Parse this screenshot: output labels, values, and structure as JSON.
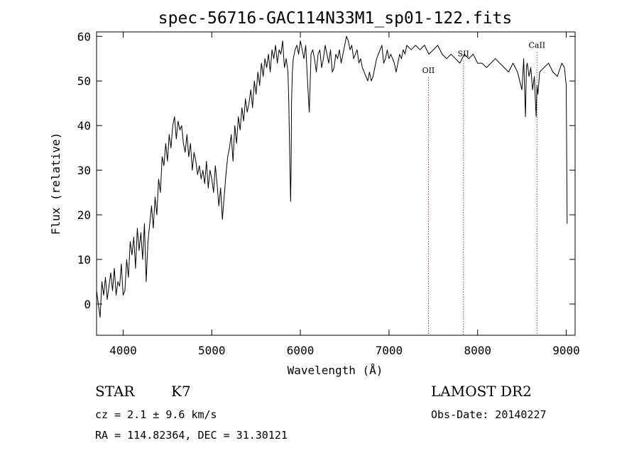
{
  "chart_data": {
    "type": "line",
    "title": "spec-56716-GAC114N33M1_sp01-122.fits",
    "xlabel": "Wavelength (Å)",
    "ylabel": "Flux (relative)",
    "xlim": [
      3700,
      9100
    ],
    "ylim": [
      -7,
      61
    ],
    "xticks": [
      4000,
      5000,
      6000,
      7000,
      8000,
      9000
    ],
    "yticks": [
      0,
      10,
      20,
      30,
      40,
      50,
      60
    ],
    "grid": false,
    "series": [
      {
        "x": [
          3700,
          3720,
          3740,
          3760,
          3780,
          3800,
          3820,
          3840,
          3860,
          3880,
          3900,
          3920,
          3940,
          3960,
          3980,
          4000,
          4020,
          4040,
          4060,
          4080,
          4100,
          4120,
          4140,
          4160,
          4180,
          4200,
          4220,
          4240,
          4260,
          4280,
          4300,
          4320,
          4340,
          4360,
          4380,
          4400,
          4420,
          4440,
          4460,
          4480,
          4500,
          4520,
          4540,
          4560,
          4580,
          4600,
          4620,
          4640,
          4660,
          4680,
          4700,
          4720,
          4740,
          4760,
          4780,
          4800,
          4820,
          4840,
          4860,
          4880,
          4900,
          4920,
          4940,
          4960,
          4980,
          5000,
          5020,
          5040,
          5060,
          5080,
          5100,
          5120,
          5140,
          5160,
          5180,
          5200,
          5220,
          5240,
          5260,
          5280,
          5300,
          5320,
          5340,
          5360,
          5380,
          5400,
          5420,
          5440,
          5460,
          5480,
          5500,
          5520,
          5540,
          5560,
          5580,
          5600,
          5620,
          5640,
          5660,
          5680,
          5700,
          5720,
          5740,
          5760,
          5780,
          5800,
          5820,
          5840,
          5860,
          5870,
          5880,
          5890,
          5895,
          5900,
          5910,
          5920,
          5940,
          5960,
          5980,
          6000,
          6020,
          6040,
          6060,
          6080,
          6100,
          6120,
          6140,
          6160,
          6180,
          6200,
          6220,
          6240,
          6260,
          6280,
          6300,
          6320,
          6340,
          6360,
          6380,
          6400,
          6420,
          6440,
          6460,
          6480,
          6500,
          6520,
          6540,
          6560,
          6580,
          6600,
          6620,
          6640,
          6660,
          6680,
          6700,
          6720,
          6740,
          6760,
          6780,
          6800,
          6820,
          6840,
          6860,
          6880,
          6900,
          6920,
          6940,
          6960,
          6980,
          7000,
          7020,
          7040,
          7060,
          7080,
          7100,
          7120,
          7140,
          7160,
          7180,
          7200,
          7250,
          7300,
          7350,
          7400,
          7450,
          7500,
          7550,
          7600,
          7650,
          7700,
          7750,
          7800,
          7850,
          7900,
          7950,
          8000,
          8050,
          8100,
          8150,
          8200,
          8250,
          8300,
          8350,
          8400,
          8450,
          8500,
          8520,
          8540,
          8550,
          8560,
          8580,
          8600,
          8620,
          8640,
          8660,
          8670,
          8680,
          8700,
          8750,
          8800,
          8850,
          8900,
          8950,
          8980,
          9000,
          9010
        ],
        "y": [
          3,
          0,
          -3,
          5,
          2,
          6,
          1,
          4,
          7,
          3,
          8,
          2,
          5,
          4,
          9,
          2,
          3,
          10,
          6,
          14,
          11,
          15,
          8,
          17,
          12,
          16,
          10,
          18,
          5,
          14,
          18,
          22,
          17,
          24,
          20,
          28,
          25,
          33,
          31,
          36,
          32,
          38,
          35,
          40,
          42,
          37,
          41,
          39,
          40,
          36,
          34,
          38,
          33,
          36,
          30,
          34,
          32,
          29,
          31,
          28,
          30,
          27,
          32,
          26,
          30,
          28,
          25,
          31,
          27,
          22,
          26,
          19,
          24,
          29,
          33,
          35,
          38,
          32,
          40,
          36,
          42,
          39,
          44,
          41,
          46,
          43,
          45,
          48,
          44,
          50,
          47,
          52,
          49,
          54,
          51,
          55,
          53,
          56,
          52,
          57,
          55,
          58,
          54,
          57,
          56,
          59,
          53,
          55,
          52,
          45,
          33,
          23,
          30,
          45,
          52,
          55,
          57,
          58,
          56,
          59,
          57,
          55,
          58,
          50,
          43,
          56,
          57,
          55,
          52,
          56,
          57,
          53,
          55,
          58,
          56,
          54,
          57,
          52,
          53,
          56,
          55,
          57,
          54,
          56,
          58,
          60,
          59,
          57,
          58,
          55,
          56,
          57,
          54,
          55,
          53,
          52,
          51,
          50,
          52,
          50,
          51,
          53,
          55,
          56,
          57,
          58,
          54,
          55,
          57,
          55,
          56,
          55,
          54,
          52,
          54,
          56,
          55,
          57,
          56,
          58,
          57,
          58,
          57,
          58,
          56,
          57,
          58,
          56,
          55,
          56,
          55,
          54,
          56,
          55,
          56,
          54,
          54,
          53,
          54,
          55,
          54,
          53,
          52,
          54,
          52,
          48,
          55,
          42,
          53,
          54,
          51,
          53,
          48,
          51,
          42,
          49,
          47,
          52,
          53,
          54,
          52,
          51,
          54,
          53,
          49,
          18
        ]
      }
    ],
    "line_markers": [
      {
        "label": "OII",
        "x": 7445,
        "label_flux": 51.8
      },
      {
        "label": "SII",
        "x": 7840,
        "label_flux": 55.5
      },
      {
        "label": "CaII",
        "x": 8670,
        "label_flux": 57.4
      }
    ]
  },
  "info": {
    "object_type": "STAR",
    "subclass": "K7",
    "survey": "LAMOST DR2",
    "cz": "cz = 2.1 ± 9.6 km/s",
    "obs_date": "Obs-Date: 20140227",
    "coords": "RA = 114.82364, DEC =  31.30121"
  }
}
